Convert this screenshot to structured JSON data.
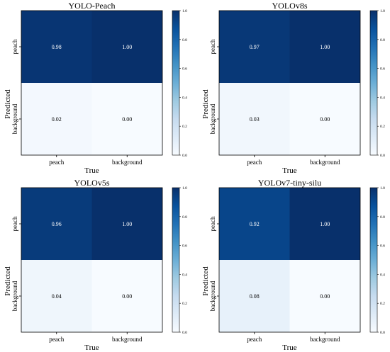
{
  "colorbar": {
    "ticks": [
      "0.0",
      "0.2",
      "0.4",
      "0.6",
      "0.8",
      "1.0"
    ],
    "range": [
      0,
      1
    ],
    "color_min": "#f7fbff",
    "color_max": "#08306b"
  },
  "chart_data": [
    {
      "type": "heatmap",
      "title": "YOLO-Peach",
      "xlabel": "True",
      "ylabel": "Predicted",
      "x_categories": [
        "peach",
        "background"
      ],
      "y_categories": [
        "peach",
        "background"
      ],
      "values": [
        [
          0.98,
          1.0
        ],
        [
          0.02,
          0.0
        ]
      ],
      "labels": [
        [
          "0.98",
          "1.00"
        ],
        [
          "0.02",
          "0.00"
        ]
      ],
      "vmin": 0,
      "vmax": 1
    },
    {
      "type": "heatmap",
      "title": "YOLOv8s",
      "xlabel": "True",
      "ylabel": "Predicted",
      "x_categories": [
        "peach",
        "background"
      ],
      "y_categories": [
        "peach",
        "background"
      ],
      "values": [
        [
          0.97,
          1.0
        ],
        [
          0.03,
          0.0
        ]
      ],
      "labels": [
        [
          "0.97",
          "1.00"
        ],
        [
          "0.03",
          "0.00"
        ]
      ],
      "vmin": 0,
      "vmax": 1
    },
    {
      "type": "heatmap",
      "title": "YOLOv5s",
      "xlabel": "True",
      "ylabel": "Predicted",
      "x_categories": [
        "peach",
        "background"
      ],
      "y_categories": [
        "peach",
        "background"
      ],
      "values": [
        [
          0.96,
          1.0
        ],
        [
          0.04,
          0.0
        ]
      ],
      "labels": [
        [
          "0.96",
          "1.00"
        ],
        [
          "0.04",
          "0.00"
        ]
      ],
      "vmin": 0,
      "vmax": 1
    },
    {
      "type": "heatmap",
      "title": "YOLOv7-tiny-silu",
      "xlabel": "True",
      "ylabel": "Predicted",
      "x_categories": [
        "peach",
        "background"
      ],
      "y_categories": [
        "peach",
        "background"
      ],
      "values": [
        [
          0.92,
          1.0
        ],
        [
          0.08,
          0.0
        ]
      ],
      "labels": [
        [
          "0.92",
          "1.00"
        ],
        [
          "0.08",
          "0.00"
        ]
      ],
      "vmin": 0,
      "vmax": 1
    }
  ]
}
